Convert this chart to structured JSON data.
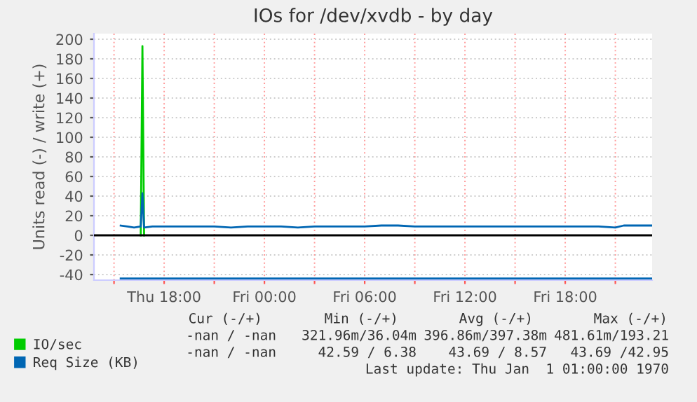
{
  "chart_data": {
    "type": "line",
    "title": "IOs for /dev/xvdb - by day",
    "ylabel": "Units read (-) / write (+)",
    "xlim": [
      "1970-01-01T13:48",
      "1970-01-02T23:12"
    ],
    "ylim": [
      -45.7,
      205.7
    ],
    "xticks": [
      {
        "value": "1970-01-01T15:00",
        "label": null
      },
      {
        "value": "1970-01-01T18:00",
        "label": "Thu 18:00"
      },
      {
        "value": "1970-01-01T21:00",
        "label": null
      },
      {
        "value": "1970-01-02T00:00",
        "label": "Fri 00:00"
      },
      {
        "value": "1970-01-02T03:00",
        "label": null
      },
      {
        "value": "1970-01-02T06:00",
        "label": "Fri 06:00"
      },
      {
        "value": "1970-01-02T09:00",
        "label": null
      },
      {
        "value": "1970-01-02T12:00",
        "label": "Fri 12:00"
      },
      {
        "value": "1970-01-02T15:00",
        "label": null
      },
      {
        "value": "1970-01-02T18:00",
        "label": "Fri 18:00"
      },
      {
        "value": "1970-01-02T21:00",
        "label": null
      }
    ],
    "yticks": [
      -40,
      -20,
      0,
      20,
      40,
      60,
      80,
      100,
      120,
      140,
      160,
      180,
      200
    ],
    "grid": true,
    "legend": "bottom",
    "ref_lines": [
      {
        "axis": "y",
        "value": 0,
        "color": "#000000"
      }
    ],
    "series": [
      {
        "name": "IO/sec",
        "color": "#00cc00",
        "x": [
          "1970-01-01T16:36",
          "1970-01-01T16:42",
          "1970-01-01T16:48"
        ],
        "values": [
          0,
          193,
          0
        ]
      },
      {
        "name": "Req Size (KB)",
        "color": "#0066b3",
        "x": [
          "1970-01-01T15:24",
          "1970-01-01T15:48",
          "1970-01-01T16:12",
          "1970-01-01T16:36",
          "1970-01-01T16:42",
          "1970-01-01T16:48",
          "1970-01-01T17:18",
          "1970-01-01T18:00",
          "1970-01-01T19:00",
          "1970-01-01T20:00",
          "1970-01-01T21:00",
          "1970-01-01T22:00",
          "1970-01-01T23:00",
          "1970-01-02T00:00",
          "1970-01-02T01:00",
          "1970-01-02T02:00",
          "1970-01-02T03:00",
          "1970-01-02T04:00",
          "1970-01-02T05:00",
          "1970-01-02T06:00",
          "1970-01-02T07:00",
          "1970-01-02T08:00",
          "1970-01-02T09:00",
          "1970-01-02T10:00",
          "1970-01-02T11:00",
          "1970-01-02T12:00",
          "1970-01-02T13:00",
          "1970-01-02T14:00",
          "1970-01-02T15:00",
          "1970-01-02T16:00",
          "1970-01-02T17:00",
          "1970-01-02T18:00",
          "1970-01-02T19:00",
          "1970-01-02T20:00",
          "1970-01-02T21:00",
          "1970-01-02T21:30",
          "1970-01-02T22:00",
          "1970-01-02T23:12"
        ],
        "values": [
          10,
          9,
          8,
          9,
          43,
          8,
          9,
          9,
          9,
          9,
          9,
          8,
          9,
          9,
          9,
          8,
          9,
          9,
          9,
          9,
          10,
          10,
          9,
          9,
          9,
          9,
          9,
          9,
          9,
          9,
          9,
          9,
          9,
          9,
          8,
          10,
          10,
          10
        ]
      },
      {
        "color": "#0066b3",
        "x": [
          "1970-01-01T15:24",
          "1970-01-02T06:00",
          "1970-01-02T23:12"
        ],
        "values": [
          -44,
          -44,
          -44
        ]
      }
    ],
    "annotations": [
      "Cur (-/+)",
      "Min (-/+)",
      "Avg (-/+)",
      "Max (-/+)",
      "-nan / -nan",
      "321.96m/36.04m",
      "396.86m/397.38m",
      "481.61m/193.21",
      "-nan / -nan",
      "42.59 / 6.38",
      "43.69 / 8.57",
      "43.69 /42.95",
      "Last update: Thu Jan  1 01:00:00 1970"
    ]
  }
}
